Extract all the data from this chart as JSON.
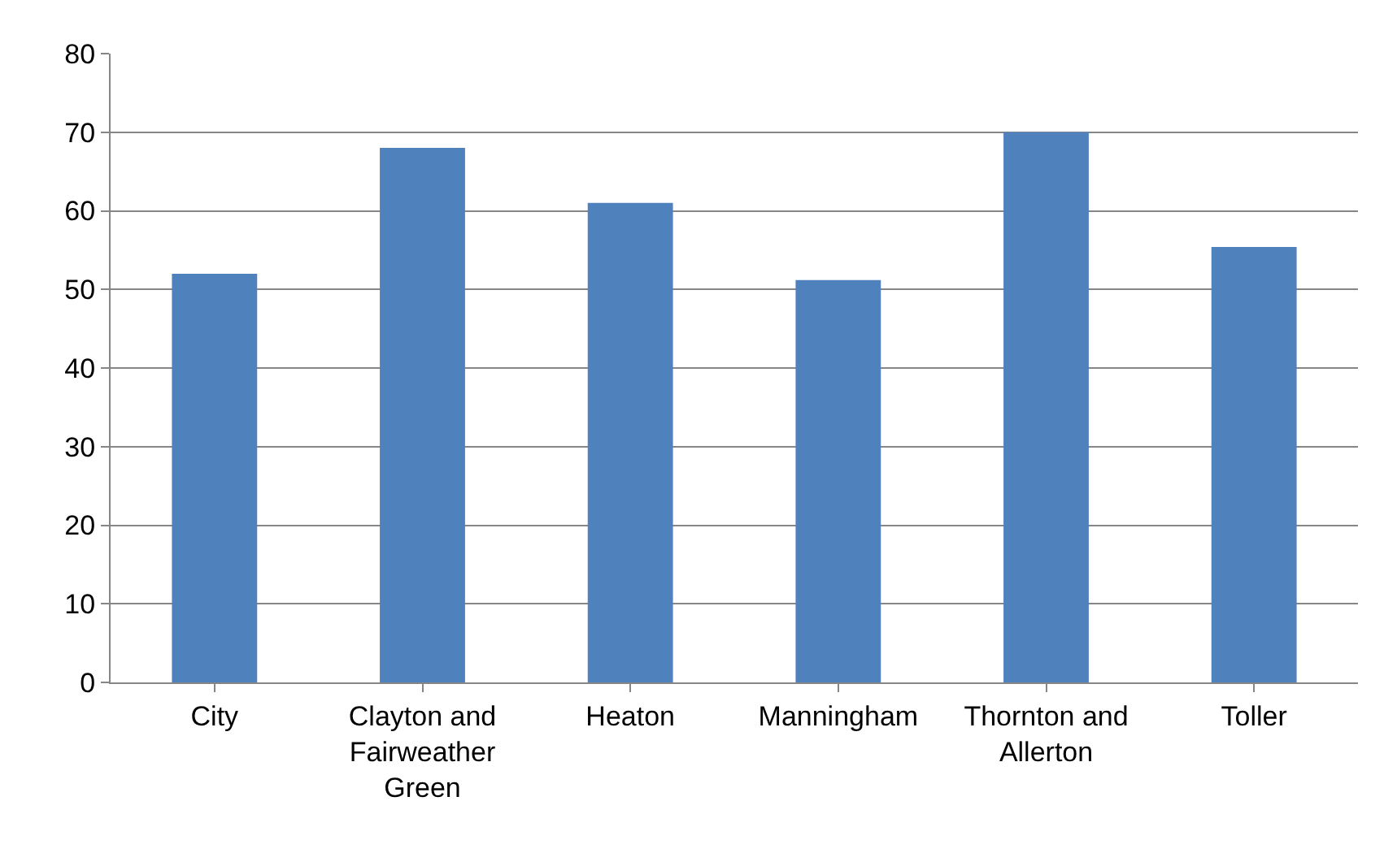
{
  "chart_data": {
    "type": "bar",
    "categories": [
      "City",
      "Clayton and Fairweather Green",
      "Heaton",
      "Manningham",
      "Thornton and Allerton",
      "Toller"
    ],
    "values": [
      52,
      68,
      61,
      51.2,
      70,
      55.4
    ],
    "color": "#4f81bd",
    "ylim": [
      0,
      80
    ],
    "yticks": [
      0,
      10,
      20,
      30,
      40,
      50,
      60,
      70,
      80
    ],
    "grid": "y",
    "legend": false
  }
}
